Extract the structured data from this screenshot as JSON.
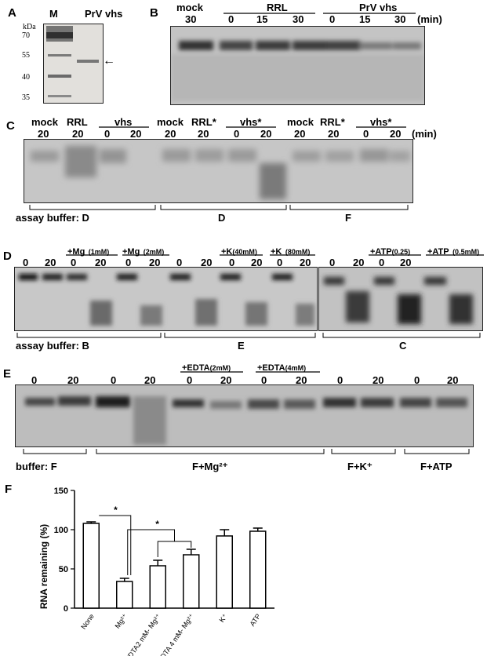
{
  "panel_a": {
    "letter": "A",
    "lane_m": "M",
    "lane_prv": "PrV vhs",
    "kda": "kDa",
    "markers": [
      "70",
      "55",
      "40",
      "35"
    ],
    "arrow": "←"
  },
  "panel_b": {
    "letter": "B",
    "groups": [
      "mock",
      "RRL",
      "PrV vhs"
    ],
    "times": [
      "30",
      "0",
      "15",
      "30",
      "0",
      "15",
      "30"
    ],
    "unit": "(min)"
  },
  "panel_c": {
    "letter": "C",
    "groups": [
      "mock",
      "RRL",
      "vhs",
      "mock",
      "RRL*",
      "vhs*",
      "mock",
      "RRL*",
      "vhs*"
    ],
    "times": [
      "20",
      "20",
      "0",
      "20",
      "20",
      "20",
      "0",
      "20",
      "20",
      "20",
      "0",
      "20"
    ],
    "unit": "(min)",
    "buffer_label": "assay buffer: D",
    "buffers": [
      "D",
      "F"
    ]
  },
  "panel_d": {
    "letter": "D",
    "conds": [
      "+Mg",
      "(1mM)",
      "+Mg",
      "(2mM)",
      "+K",
      "(40mM)",
      "+K",
      "(80mM)",
      "+ATP",
      "(0.25)",
      "+ATP",
      "(0.5mM)"
    ],
    "times": [
      "0",
      "20",
      "0",
      "20",
      "0",
      "20",
      "0",
      "20",
      "0",
      "20",
      "0",
      "20",
      "0",
      "20",
      "0",
      "20"
    ],
    "buffer_label": "assay buffer: B",
    "buffers": [
      "E",
      "C"
    ]
  },
  "panel_e": {
    "letter": "E",
    "conds": [
      "+EDTA",
      "(2mM)",
      "+EDTA",
      "(4mM)"
    ],
    "times": [
      "0",
      "20",
      "0",
      "20",
      "0",
      "20",
      "0",
      "20",
      "0",
      "20",
      "0",
      "20"
    ],
    "buffer_label": "buffer: F",
    "buffers": [
      "F+Mg²⁺",
      "F+K⁺",
      "F+ATP"
    ]
  },
  "panel_f": {
    "letter": "F",
    "ylabel": "RNA remaining (%)",
    "yticks": [
      "0",
      "50",
      "100",
      "150"
    ],
    "sig": "*"
  },
  "chart_data": {
    "type": "bar",
    "categories": [
      "None",
      "Mg²⁺",
      "EDTA2 mM- Mg²⁺",
      "EDTA 4 mM- Mg²⁺",
      "K⁺",
      "ATP"
    ],
    "values": [
      108,
      34,
      54,
      68,
      92,
      98
    ],
    "errors": [
      2,
      4,
      7,
      7,
      8,
      4
    ],
    "ylabel": "RNA remaining (%)",
    "ylim": [
      0,
      150
    ],
    "grid": false,
    "colors": {
      "bar_fill": "#ffffff",
      "bar_edge": "#000000"
    }
  }
}
